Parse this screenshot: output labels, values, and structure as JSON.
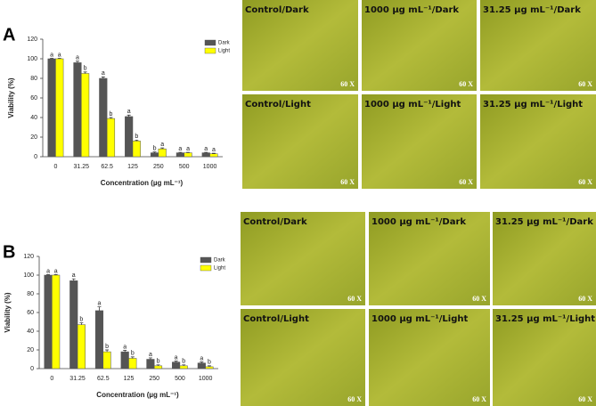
{
  "chart_data": [
    {
      "type": "bar",
      "panel_label": "A",
      "x_label": "Concentration (µg mL⁻¹)",
      "y_label": "Viability (%)",
      "categories": [
        "0",
        "31.25",
        "62.5",
        "125",
        "250",
        "500",
        "1000"
      ],
      "series": [
        {
          "name": "Dark",
          "color": "#555555",
          "values": [
            100,
            96,
            80,
            41,
            4,
            4,
            4
          ],
          "errors": [
            0.5,
            1.5,
            1.5,
            1.5,
            0.8,
            0.5,
            0.5
          ],
          "letters": [
            "a",
            "a",
            "a",
            "a",
            "b",
            "a",
            "a"
          ]
        },
        {
          "name": "Light",
          "color": "#ffff00",
          "values": [
            100,
            85,
            39,
            16,
            8,
            4,
            3
          ],
          "errors": [
            0.5,
            1.5,
            1,
            1,
            1,
            0.5,
            0.5
          ],
          "letters": [
            "a",
            "b",
            "b",
            "b",
            "a",
            "a",
            "a"
          ]
        }
      ],
      "ylim": [
        0,
        120
      ],
      "yticks": [
        0,
        20,
        40,
        60,
        80,
        100,
        120
      ],
      "legend": "upper right",
      "grid": false
    },
    {
      "type": "bar",
      "panel_label": "B",
      "x_label": "Concentration (µg mL⁻¹)",
      "y_label": "Viability (%)",
      "categories": [
        "0",
        "31.25",
        "62.5",
        "125",
        "250",
        "500",
        "1000"
      ],
      "series": [
        {
          "name": "Dark",
          "color": "#555555",
          "values": [
            100,
            94,
            62,
            18,
            10,
            7,
            6
          ],
          "errors": [
            0.5,
            2,
            4,
            1.5,
            1.5,
            1,
            1
          ],
          "letters": [
            "a",
            "a",
            "a",
            "a",
            "a",
            "a",
            "a"
          ]
        },
        {
          "name": "Light",
          "color": "#ffff00",
          "values": [
            100,
            47,
            18,
            11,
            3,
            3,
            2
          ],
          "errors": [
            0.5,
            2,
            2,
            1.5,
            1,
            1,
            1
          ],
          "letters": [
            "a",
            "b",
            "b",
            "b",
            "b",
            "b",
            "b"
          ]
        }
      ],
      "ylim": [
        0,
        120
      ],
      "yticks": [
        0,
        20,
        40,
        60,
        80,
        100,
        120
      ],
      "legend": "upper right",
      "grid": false
    }
  ],
  "micrographs": [
    {
      "images": [
        {
          "label": "Control/Dark",
          "magnification": "60 X"
        },
        {
          "label": "1000 µg mL⁻¹/Dark",
          "magnification": "60 X"
        },
        {
          "label": "31.25 µg mL⁻¹/Dark",
          "magnification": "60 X"
        },
        {
          "label": "Control/Light",
          "magnification": "60 X"
        },
        {
          "label": "1000 µg mL⁻¹/Light",
          "magnification": "60 X"
        },
        {
          "label": "31.25 µg mL⁻¹/Light",
          "magnification": "60 X"
        }
      ]
    },
    {
      "images": [
        {
          "label": "Control/Dark",
          "magnification": "60 X"
        },
        {
          "label": "1000 µg mL⁻¹/Dark",
          "magnification": "60 X"
        },
        {
          "label": "31.25 µg mL⁻¹/Dark",
          "magnification": "60 X"
        },
        {
          "label": "Control/Light",
          "magnification": "60 X"
        },
        {
          "label": "1000 µg mL⁻¹/Light",
          "magnification": "60 X"
        },
        {
          "label": "31.25 µg mL⁻¹/Light",
          "magnification": "60 X"
        }
      ]
    }
  ]
}
